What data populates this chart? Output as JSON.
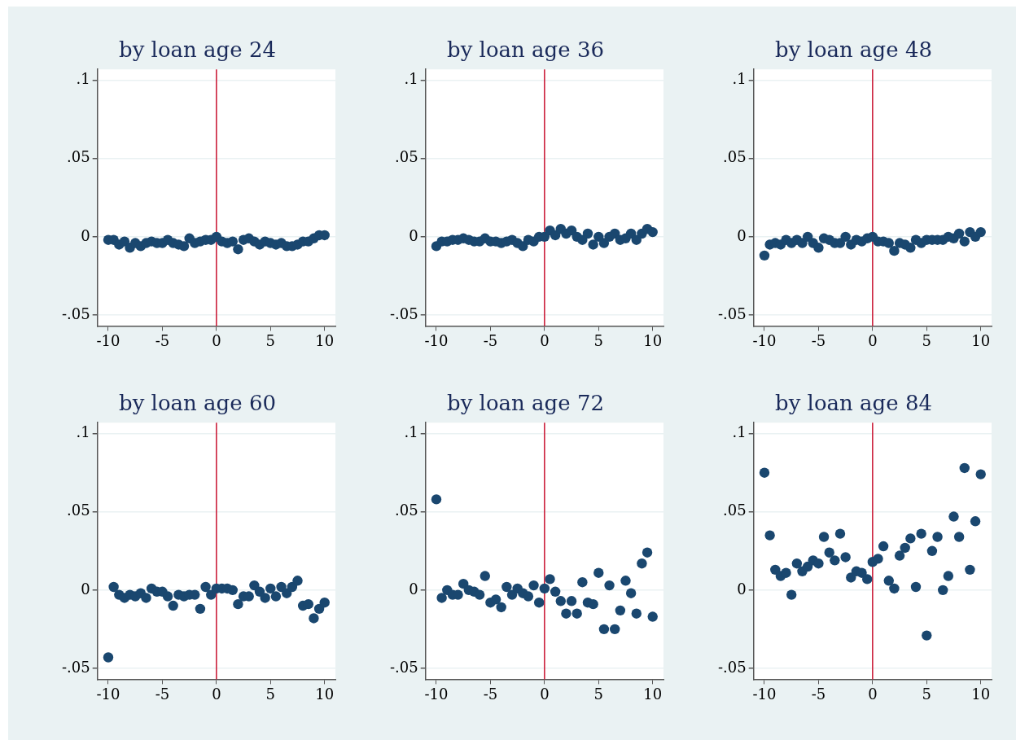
{
  "chart_data": [
    {
      "type": "scatter",
      "title": "by loan age 24",
      "color": "#1a476f",
      "marker": "circle",
      "grid": "y",
      "xlim": [
        -11,
        11
      ],
      "ylim": [
        -0.057,
        0.107
      ],
      "xticks": [
        -10,
        -5,
        0,
        5,
        10
      ],
      "yticks": [
        {
          "value": -0.05,
          "label": "-.05"
        },
        {
          "value": 0,
          "label": "0"
        },
        {
          "value": 0.05,
          "label": ".05"
        },
        {
          "value": 0.1,
          "label": ".1"
        }
      ],
      "ref_lines": [
        {
          "axis": "x",
          "value": 0,
          "color": "#c8102e"
        }
      ],
      "x": [
        -10,
        -9.5,
        -9,
        -8.5,
        -8,
        -7.5,
        -7,
        -6.5,
        -6,
        -5.5,
        -5,
        -4.5,
        -4,
        -3.5,
        -3,
        -2.5,
        -2,
        -1.5,
        -1,
        -0.5,
        0,
        0.5,
        1,
        1.5,
        2,
        2.5,
        3,
        3.5,
        4,
        4.5,
        5,
        5.5,
        6,
        6.5,
        7,
        7.5,
        8,
        8.5,
        9,
        9.5,
        10
      ],
      "values": [
        -0.002,
        -0.002,
        -0.005,
        -0.003,
        -0.007,
        -0.004,
        -0.006,
        -0.004,
        -0.003,
        -0.004,
        -0.004,
        -0.002,
        -0.004,
        -0.005,
        -0.006,
        -0.001,
        -0.004,
        -0.003,
        -0.002,
        -0.002,
        0,
        -0.003,
        -0.004,
        -0.003,
        -0.008,
        -0.002,
        -0.001,
        -0.003,
        -0.005,
        -0.003,
        -0.004,
        -0.005,
        -0.004,
        -0.006,
        -0.006,
        -0.005,
        -0.003,
        -0.003,
        -0.001,
        0.001,
        0.001
      ]
    },
    {
      "type": "scatter",
      "title": "by loan age 36",
      "color": "#1a476f",
      "marker": "circle",
      "grid": "y",
      "xlim": [
        -11,
        11
      ],
      "ylim": [
        -0.057,
        0.107
      ],
      "xticks": [
        -10,
        -5,
        0,
        5,
        10
      ],
      "yticks": [
        {
          "value": -0.05,
          "label": "-.05"
        },
        {
          "value": 0,
          "label": "0"
        },
        {
          "value": 0.05,
          "label": ".05"
        },
        {
          "value": 0.1,
          "label": ".1"
        }
      ],
      "ref_lines": [
        {
          "axis": "x",
          "value": 0,
          "color": "#c8102e"
        }
      ],
      "x": [
        -10,
        -9.5,
        -9,
        -8.5,
        -8,
        -7.5,
        -7,
        -6.5,
        -6,
        -5.5,
        -5,
        -4.5,
        -4,
        -3.5,
        -3,
        -2.5,
        -2,
        -1.5,
        -1,
        -0.5,
        0,
        0.5,
        1,
        1.5,
        2,
        2.5,
        3,
        3.5,
        4,
        4.5,
        5,
        5.5,
        6,
        6.5,
        7,
        7.5,
        8,
        8.5,
        9,
        9.5,
        10
      ],
      "values": [
        -0.006,
        -0.003,
        -0.003,
        -0.002,
        -0.002,
        -0.001,
        -0.002,
        -0.003,
        -0.003,
        -0.001,
        -0.003,
        -0.003,
        -0.004,
        -0.003,
        -0.002,
        -0.004,
        -0.006,
        -0.002,
        -0.003,
        0,
        0,
        0.004,
        0.001,
        0.005,
        0.002,
        0.004,
        0,
        -0.002,
        0.002,
        -0.005,
        0,
        -0.004,
        0,
        0.002,
        -0.002,
        -0.001,
        0.002,
        -0.002,
        0.002,
        0.005,
        0.003
      ]
    },
    {
      "type": "scatter",
      "title": "by loan age 48",
      "color": "#1a476f",
      "marker": "circle",
      "grid": "y",
      "xlim": [
        -11,
        11
      ],
      "ylim": [
        -0.057,
        0.107
      ],
      "xticks": [
        -10,
        -5,
        0,
        5,
        10
      ],
      "yticks": [
        {
          "value": -0.05,
          "label": "-.05"
        },
        {
          "value": 0,
          "label": "0"
        },
        {
          "value": 0.05,
          "label": ".05"
        },
        {
          "value": 0.1,
          "label": ".1"
        }
      ],
      "ref_lines": [
        {
          "axis": "x",
          "value": 0,
          "color": "#c8102e"
        }
      ],
      "x": [
        -10,
        -9.5,
        -9,
        -8.5,
        -8,
        -7.5,
        -7,
        -6.5,
        -6,
        -5.5,
        -5,
        -4.5,
        -4,
        -3.5,
        -3,
        -2.5,
        -2,
        -1.5,
        -1,
        -0.5,
        0,
        0.5,
        1,
        1.5,
        2,
        2.5,
        3,
        3.5,
        4,
        4.5,
        5,
        5.5,
        6,
        6.5,
        7,
        7.5,
        8,
        8.5,
        9,
        9.5,
        10
      ],
      "values": [
        -0.012,
        -0.005,
        -0.004,
        -0.005,
        -0.002,
        -0.004,
        -0.002,
        -0.004,
        0,
        -0.004,
        -0.007,
        -0.001,
        -0.002,
        -0.004,
        -0.004,
        0,
        -0.005,
        -0.002,
        -0.003,
        -0.001,
        0,
        -0.003,
        -0.003,
        -0.004,
        -0.009,
        -0.004,
        -0.005,
        -0.007,
        -0.002,
        -0.004,
        -0.002,
        -0.002,
        -0.002,
        -0.002,
        0,
        -0.001,
        0.002,
        -0.003,
        0.003,
        0,
        0.003
      ]
    },
    {
      "type": "scatter",
      "title": "by loan age 60",
      "color": "#1a476f",
      "marker": "circle",
      "grid": "y",
      "xlim": [
        -11,
        11
      ],
      "ylim": [
        -0.057,
        0.107
      ],
      "xticks": [
        -10,
        -5,
        0,
        5,
        10
      ],
      "yticks": [
        {
          "value": -0.05,
          "label": "-.05"
        },
        {
          "value": 0,
          "label": "0"
        },
        {
          "value": 0.05,
          "label": ".05"
        },
        {
          "value": 0.1,
          "label": ".1"
        }
      ],
      "ref_lines": [
        {
          "axis": "x",
          "value": 0,
          "color": "#c8102e"
        }
      ],
      "x": [
        -10,
        -9.5,
        -9,
        -8.5,
        -8,
        -7.5,
        -7,
        -6.5,
        -6,
        -5.5,
        -5,
        -4.5,
        -4,
        -3.5,
        -3,
        -2.5,
        -2,
        -1.5,
        -1,
        -0.5,
        0,
        0.5,
        1,
        1.5,
        2,
        2.5,
        3,
        3.5,
        4,
        4.5,
        5,
        5.5,
        6,
        6.5,
        7,
        7.5,
        8,
        8.5,
        9,
        9.5,
        10
      ],
      "values": [
        -0.043,
        0.002,
        -0.003,
        -0.005,
        -0.003,
        -0.004,
        -0.002,
        -0.005,
        0.001,
        -0.001,
        -0.001,
        -0.004,
        -0.01,
        -0.003,
        -0.004,
        -0.003,
        -0.003,
        -0.012,
        0.002,
        -0.003,
        0.001,
        0.001,
        0.001,
        0,
        -0.009,
        -0.004,
        -0.004,
        0.003,
        -0.001,
        -0.005,
        0.001,
        -0.004,
        0.002,
        -0.002,
        0.002,
        0.006,
        -0.01,
        -0.009,
        -0.018,
        -0.012,
        -0.008
      ]
    },
    {
      "type": "scatter",
      "title": "by loan age 72",
      "color": "#1a476f",
      "marker": "circle",
      "grid": "y",
      "xlim": [
        -11,
        11
      ],
      "ylim": [
        -0.057,
        0.107
      ],
      "xticks": [
        -10,
        -5,
        0,
        5,
        10
      ],
      "yticks": [
        {
          "value": -0.05,
          "label": "-.05"
        },
        {
          "value": 0,
          "label": "0"
        },
        {
          "value": 0.05,
          "label": ".05"
        },
        {
          "value": 0.1,
          "label": ".1"
        }
      ],
      "ref_lines": [
        {
          "axis": "x",
          "value": 0,
          "color": "#c8102e"
        }
      ],
      "x": [
        -10,
        -9.5,
        -9,
        -8.5,
        -8,
        -7.5,
        -7,
        -6.5,
        -6,
        -5.5,
        -5,
        -4.5,
        -4,
        -3.5,
        -3,
        -2.5,
        -2,
        -1.5,
        -1,
        -0.5,
        0,
        0.5,
        1,
        1.5,
        2,
        2.5,
        3,
        3.5,
        4,
        4.5,
        5,
        5.5,
        6,
        6.5,
        7,
        7.5,
        8,
        8.5,
        9,
        9.5,
        10
      ],
      "values": [
        0.058,
        -0.005,
        0,
        -0.003,
        -0.003,
        0.004,
        0,
        -0.001,
        -0.003,
        0.009,
        -0.008,
        -0.006,
        -0.011,
        0.002,
        -0.003,
        0.001,
        -0.002,
        -0.004,
        0.003,
        -0.008,
        0.001,
        0.007,
        -0.001,
        -0.007,
        -0.015,
        -0.007,
        -0.015,
        0.005,
        -0.008,
        -0.009,
        0.011,
        -0.025,
        0.003,
        -0.025,
        -0.013,
        0.006,
        -0.002,
        -0.015,
        0.017,
        0.024,
        -0.017
      ]
    },
    {
      "type": "scatter",
      "title": "by loan age 84",
      "color": "#1a476f",
      "marker": "circle",
      "grid": "y",
      "xlim": [
        -11,
        11
      ],
      "ylim": [
        -0.057,
        0.107
      ],
      "xticks": [
        -10,
        -5,
        0,
        5,
        10
      ],
      "yticks": [
        {
          "value": -0.05,
          "label": "-.05"
        },
        {
          "value": 0,
          "label": "0"
        },
        {
          "value": 0.05,
          "label": ".05"
        },
        {
          "value": 0.1,
          "label": ".1"
        }
      ],
      "ref_lines": [
        {
          "axis": "x",
          "value": 0,
          "color": "#c8102e"
        }
      ],
      "x": [
        -10,
        -9.5,
        -9,
        -8.5,
        -8,
        -7.5,
        -7,
        -6.5,
        -6,
        -5.5,
        -5,
        -4.5,
        -4,
        -3.5,
        -3,
        -2.5,
        -2,
        -1.5,
        -1,
        -0.5,
        0,
        0.5,
        1,
        1.5,
        2,
        2.5,
        3,
        3.5,
        4,
        4.5,
        5,
        5.5,
        6,
        6.5,
        7,
        7.5,
        8,
        8.5,
        9,
        9.5,
        10
      ],
      "values": [
        0.075,
        0.035,
        0.013,
        0.009,
        0.011,
        -0.003,
        0.017,
        0.012,
        0.015,
        0.019,
        0.017,
        0.034,
        0.024,
        0.019,
        0.036,
        0.021,
        0.008,
        0.012,
        0.011,
        0.007,
        0.018,
        0.02,
        0.028,
        0.006,
        0.001,
        0.022,
        0.027,
        0.033,
        0.002,
        0.036,
        -0.029,
        0.025,
        0.034,
        0,
        0.009,
        0.047,
        0.034,
        0.078,
        0.013,
        0.044,
        0.074
      ]
    }
  ]
}
